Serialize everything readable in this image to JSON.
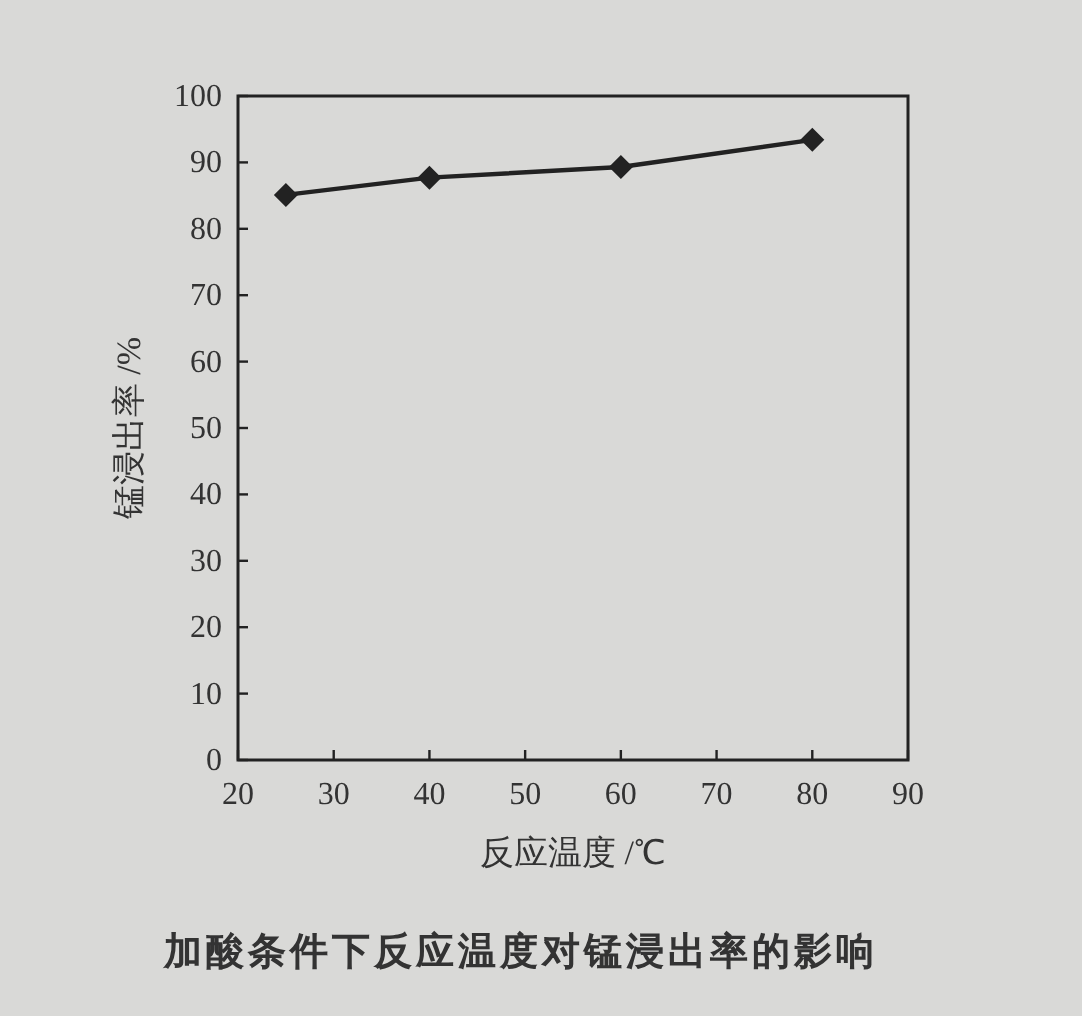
{
  "chart_data": {
    "type": "line",
    "title": "加酸条件下反应温度对锰浸出率的影响",
    "xlabel": "反应温度 /℃",
    "ylabel": "锰浸出率 /%",
    "x": [
      25,
      40,
      60,
      80
    ],
    "series": [
      {
        "color": "#222222",
        "values": [
          85.1,
          87.7,
          89.3,
          93.4
        ]
      }
    ],
    "xlim": [
      20,
      90
    ],
    "ylim": [
      0,
      100
    ],
    "xticks": [
      20,
      30,
      40,
      50,
      60,
      70,
      80,
      90
    ],
    "yticks": [
      0,
      10,
      20,
      30,
      40,
      50,
      60,
      70,
      80,
      90,
      100
    ],
    "marker": "diamond",
    "grid": false
  }
}
